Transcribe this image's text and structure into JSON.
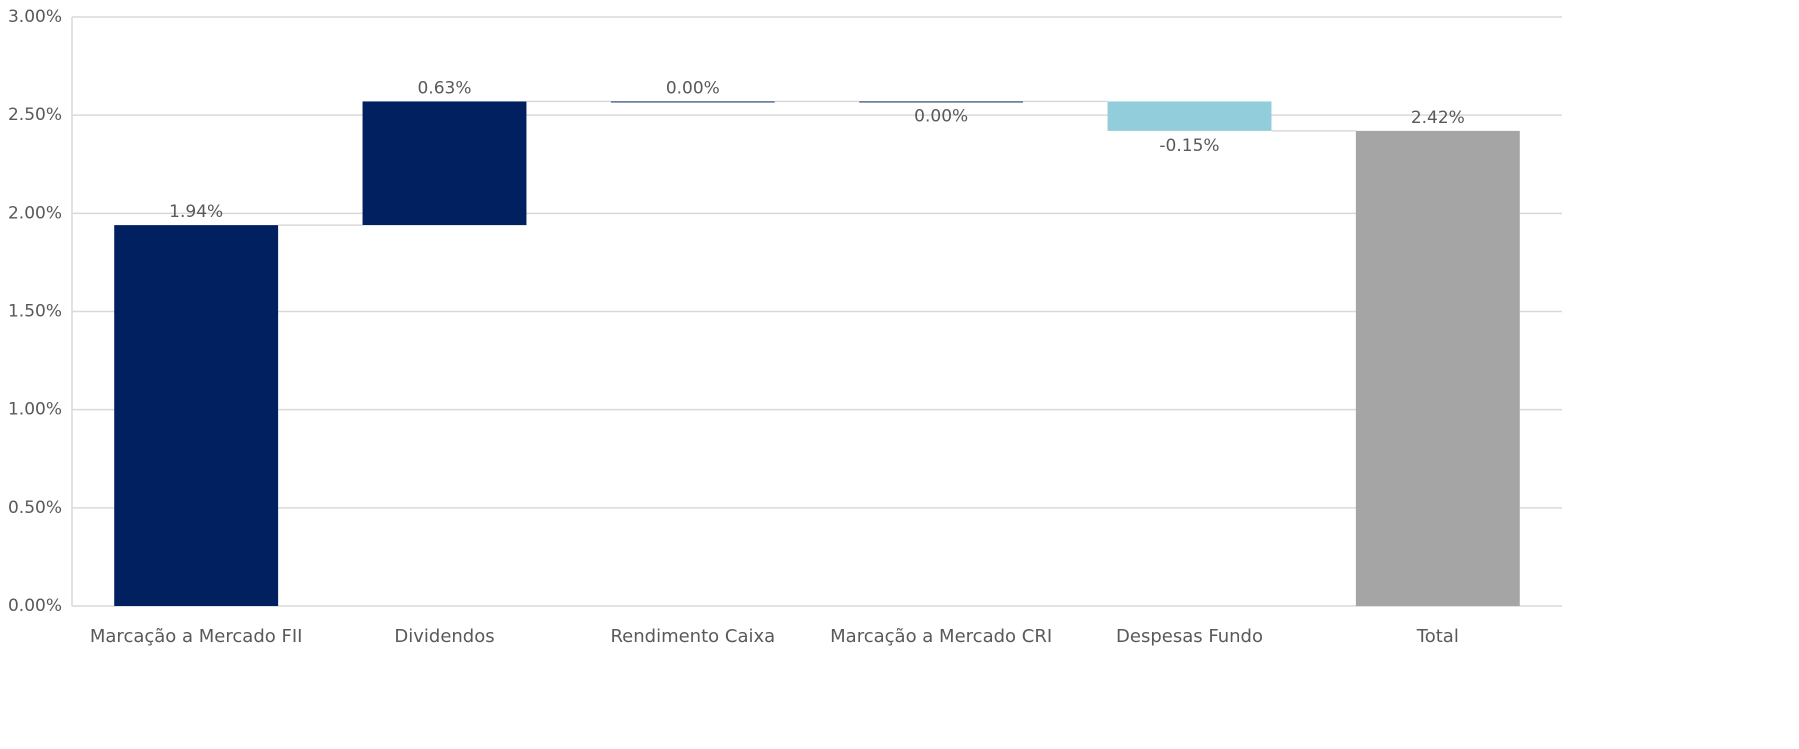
{
  "chart_data": {
    "type": "waterfall",
    "categories": [
      "Marcação a Mercado FII",
      "Dividendos",
      "Rendimento Caixa",
      "Marcação a Mercado CRI",
      "Despesas Fundo",
      "Total"
    ],
    "values": [
      1.94,
      0.63,
      0.0,
      0.0,
      -0.15,
      2.42
    ],
    "value_labels": [
      "1.94%",
      "0.63%",
      "0.00%",
      "0.00%",
      "-0.15%",
      "2.42%"
    ],
    "total": [
      false,
      false,
      false,
      false,
      false,
      true
    ],
    "label_positions": [
      "above",
      "above",
      "above",
      "below",
      "below",
      "above"
    ],
    "increase_color": "#002060",
    "decrease_color": "#92cddc",
    "total_color": "#a5a5a5",
    "ylim": [
      0,
      3
    ],
    "yticks": [
      {
        "value": 0,
        "label": "0.00%"
      },
      {
        "value": 0.5,
        "label": "0.50%"
      },
      {
        "value": 1,
        "label": "1.00%"
      },
      {
        "value": 1.5,
        "label": "1.50%"
      },
      {
        "value": 2,
        "label": "2.00%"
      },
      {
        "value": 2.5,
        "label": "2.50%"
      },
      {
        "value": 3,
        "label": "3.00%"
      }
    ],
    "grid": true
  }
}
